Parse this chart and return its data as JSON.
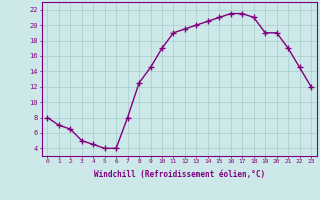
{
  "x": [
    0,
    1,
    2,
    3,
    4,
    5,
    6,
    7,
    8,
    9,
    10,
    11,
    12,
    13,
    14,
    15,
    16,
    17,
    18,
    19,
    20,
    21,
    22,
    23
  ],
  "y": [
    8,
    7,
    6.5,
    5,
    4.5,
    4,
    4,
    8,
    12.5,
    14.5,
    17,
    19,
    19.5,
    20,
    20.5,
    21,
    21.5,
    21.5,
    21,
    19,
    19,
    17,
    14.5,
    12
  ],
  "line_color": "#800080",
  "bg_color": "#cce8e8",
  "grid_color": "#aacccc",
  "xlabel": "Windchill (Refroidissement éolien,°C)",
  "ylim": [
    3,
    23
  ],
  "xlim": [
    -0.5,
    23.5
  ],
  "yticks": [
    4,
    6,
    8,
    10,
    12,
    14,
    16,
    18,
    20,
    22
  ],
  "xticks": [
    0,
    1,
    2,
    3,
    4,
    5,
    6,
    7,
    8,
    9,
    10,
    11,
    12,
    13,
    14,
    15,
    16,
    17,
    18,
    19,
    20,
    21,
    22,
    23
  ],
  "font_color": "#800080",
  "linewidth": 1.0,
  "markersize": 4
}
